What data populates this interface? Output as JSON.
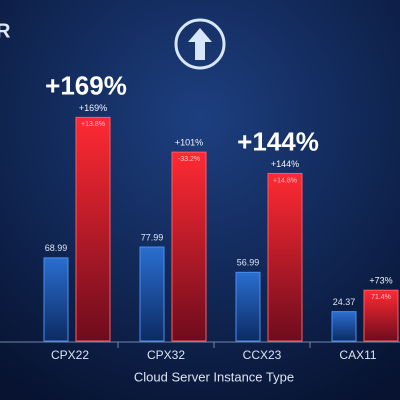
{
  "logo_text": "R",
  "chart_data": {
    "type": "bar",
    "x_label": "Cloud Server Instance Type",
    "categories": [
      "CPX22",
      "CPX32",
      "CCX23",
      "CAX11"
    ],
    "series": [
      {
        "color": "#1f5bb0",
        "values": [
          68.99,
          77.99,
          56.99,
          24.37
        ],
        "value_labels": [
          "68.99",
          "77.99",
          "56.99",
          "24.37"
        ]
      },
      {
        "color": "#e0202a",
        "values": [
          185.58,
          156.74,
          139.06,
          42.16
        ],
        "top_labels": [
          "+169%",
          "+101%",
          "+144%",
          "+73%"
        ],
        "inner_labels": [
          "+13.8%",
          "-33.2%",
          "+14.8%",
          "71.4%"
        ]
      }
    ],
    "ylim": [
      0,
      200
    ],
    "annotations": [
      {
        "text": "+169%",
        "category": 0
      },
      {
        "text": "+144%",
        "category": 2
      }
    ]
  }
}
